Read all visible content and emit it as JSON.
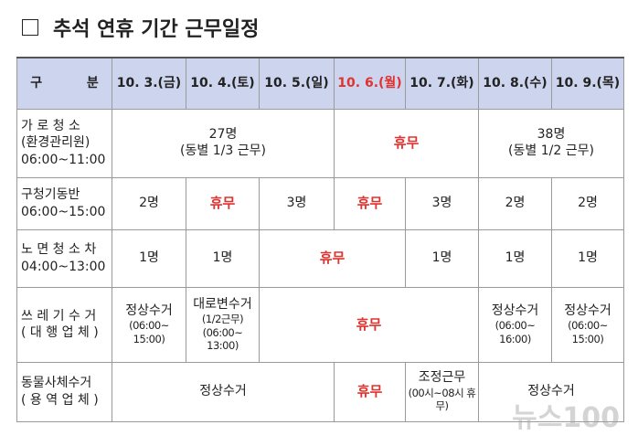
{
  "title": "추석 연휴 기간 근무일정",
  "table": {
    "header": {
      "label": "구          분",
      "dates": [
        {
          "text": "10. 3.(금)"
        },
        {
          "text": "10. 4.(토)"
        },
        {
          "text": "10. 5.(일)"
        },
        {
          "text": "10. 6.(월)",
          "color": "#e0322f"
        },
        {
          "text": "10. 7.(화)"
        },
        {
          "text": "10. 8.(수)"
        },
        {
          "text": "10. 9.(목)"
        }
      ]
    },
    "rows": [
      {
        "label": [
          "가 로 청 소",
          "(환경관리원)",
          "06:00~11:00"
        ],
        "cells": [
          {
            "lines": [
              "27명",
              "(동별 1/3 근무)"
            ],
            "span": 3
          },
          {
            "lines": [
              "휴무"
            ],
            "span": 2,
            "color": "#e0322f"
          },
          {
            "lines": [
              "38명",
              "(동별 1/2 근무)"
            ],
            "span": 2
          }
        ]
      },
      {
        "label": [
          "구청기동반",
          "06:00~15:00"
        ],
        "cells": [
          {
            "lines": [
              "2명"
            ],
            "span": 1
          },
          {
            "lines": [
              "휴무"
            ],
            "span": 1,
            "color": "#e0322f"
          },
          {
            "lines": [
              "3명"
            ],
            "span": 1
          },
          {
            "lines": [
              "휴무"
            ],
            "span": 1,
            "color": "#e0322f"
          },
          {
            "lines": [
              "3명"
            ],
            "span": 1
          },
          {
            "lines": [
              "2명"
            ],
            "span": 1
          },
          {
            "lines": [
              "2명"
            ],
            "span": 1
          }
        ]
      },
      {
        "label": [
          "노 면 청 소 차",
          "04:00~13:00"
        ],
        "cells": [
          {
            "lines": [
              "1명"
            ],
            "span": 1
          },
          {
            "lines": [
              "1명"
            ],
            "span": 1
          },
          {
            "lines": [
              "휴무"
            ],
            "span": 2,
            "color": "#e0322f"
          },
          {
            "lines": [
              "1명"
            ],
            "span": 1
          },
          {
            "lines": [
              "1명"
            ],
            "span": 1
          },
          {
            "lines": [
              "1명"
            ],
            "span": 1
          }
        ]
      },
      {
        "label": [
          "쓰 레 기 수 거",
          "( 대 행 업 체 )"
        ],
        "cells": [
          {
            "lines": [
              "정상수거",
              "(06:00~",
              "15:00)"
            ],
            "span": 1
          },
          {
            "lines": [
              "대로변수거",
              "(1/2근무)",
              "(06:00~",
              "13:00)"
            ],
            "span": 1
          },
          {
            "lines": [
              "휴무"
            ],
            "span": 3,
            "color": "#e0322f"
          },
          {
            "lines": [
              "정상수거",
              "(06:00~",
              "16:00)"
            ],
            "span": 1
          },
          {
            "lines": [
              "정상수거",
              "(06:00~",
              "15:00)"
            ],
            "span": 1
          }
        ]
      },
      {
        "label": [
          "동물사체수거",
          "( 용 역 업 체 )"
        ],
        "cells": [
          {
            "lines": [
              "정상수거"
            ],
            "span": 3
          },
          {
            "lines": [
              "휴무"
            ],
            "span": 1,
            "color": "#e0322f"
          },
          {
            "lines": [
              "조정근무",
              "(00시~08시 휴무)"
            ],
            "span": 1
          },
          {
            "lines": [
              "정상수거"
            ],
            "span": 2
          }
        ]
      }
    ]
  },
  "watermark": "뉴스100"
}
